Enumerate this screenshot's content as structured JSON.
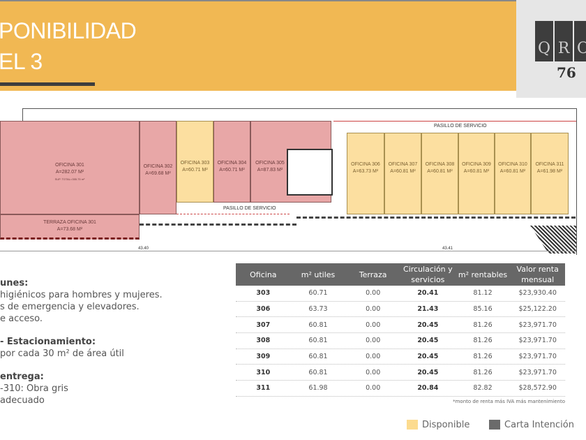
{
  "header": {
    "title_line1": "PONIBILIDAD",
    "title_line2": "EL 3"
  },
  "logo": {
    "letters": [
      "Q",
      "R",
      "O"
    ],
    "number": "76"
  },
  "plan": {
    "corridor_top": "PASILLO DE SERVICIO",
    "corridor_mid": "PASILLO DE SERVICIO",
    "dimension_left": "43.40",
    "dimension_right": "43.41",
    "offices_left": [
      {
        "name": "OFICINA 301",
        "area": "A=282.07 M²",
        "extra": "SUP. TOTAL=355.75 m²",
        "status": "carta"
      },
      {
        "name": "OFICINA 302",
        "area": "A=69.68 M²",
        "status": "carta"
      },
      {
        "name": "OFICINA 303",
        "area": "A=60.71 M²",
        "status": "disponible"
      },
      {
        "name": "OFICINA 304",
        "area": "A=60.71 M²",
        "status": "carta"
      },
      {
        "name": "OFICINA 305",
        "area": "A=87.83 M²",
        "status": "carta"
      }
    ],
    "terrace": {
      "name": "TERRAZA OFICINA 301",
      "area": "A=73.68 M²"
    },
    "offices_right": [
      {
        "name": "OFICINA 306",
        "area": "A=63.73 M²"
      },
      {
        "name": "OFICINA 307",
        "area": "A=60.81 M²"
      },
      {
        "name": "OFICINA 308",
        "area": "A=60.81 M²"
      },
      {
        "name": "OFICINA 309",
        "area": "A=60.81 M²"
      },
      {
        "name": "OFICINA 310",
        "area": "A=60.81 M²"
      },
      {
        "name": "OFICINA 311",
        "area": "A=61.98 M²"
      }
    ]
  },
  "notes": {
    "h1": "unes:",
    "l1": " higiénicos para hombres y mujeres.",
    "l2": "s de emergencia y elevadores.",
    "l3": "e acceso.",
    "h2": "- Estacionamiento:",
    "l4": "por cada 30 m² de área útil",
    "h3": "entrega:",
    "l5": "-310: Obra gris",
    "l6": "adecuado"
  },
  "table": {
    "headers": [
      "Oficina",
      "m² utiles",
      "Terraza",
      "Circulación y servicios",
      "m² rentables",
      "Valor renta mensual"
    ],
    "rows": [
      [
        "303",
        "60.71",
        "0.00",
        "20.41",
        "81.12",
        "$23,930.40"
      ],
      [
        "306",
        "63.73",
        "0.00",
        "21.43",
        "85.16",
        "$25,122.20"
      ],
      [
        "307",
        "60.81",
        "0.00",
        "20.45",
        "81.26",
        "$23,971.70"
      ],
      [
        "308",
        "60.81",
        "0.00",
        "20.45",
        "81.26",
        "$23,971.70"
      ],
      [
        "309",
        "60.81",
        "0.00",
        "20.45",
        "81.26",
        "$23,971.70"
      ],
      [
        "310",
        "60.81",
        "0.00",
        "20.45",
        "81.26",
        "$23,971.70"
      ],
      [
        "311",
        "61.98",
        "0.00",
        "20.84",
        "82.82",
        "$28,572.90"
      ]
    ],
    "footnote": "*monto de renta más IVA más mantenimiento"
  },
  "legend": {
    "available": "Disponible",
    "letter": "Carta Intención",
    "available_color": "#FCDB8F",
    "letter_color": "#6B6B6B"
  }
}
